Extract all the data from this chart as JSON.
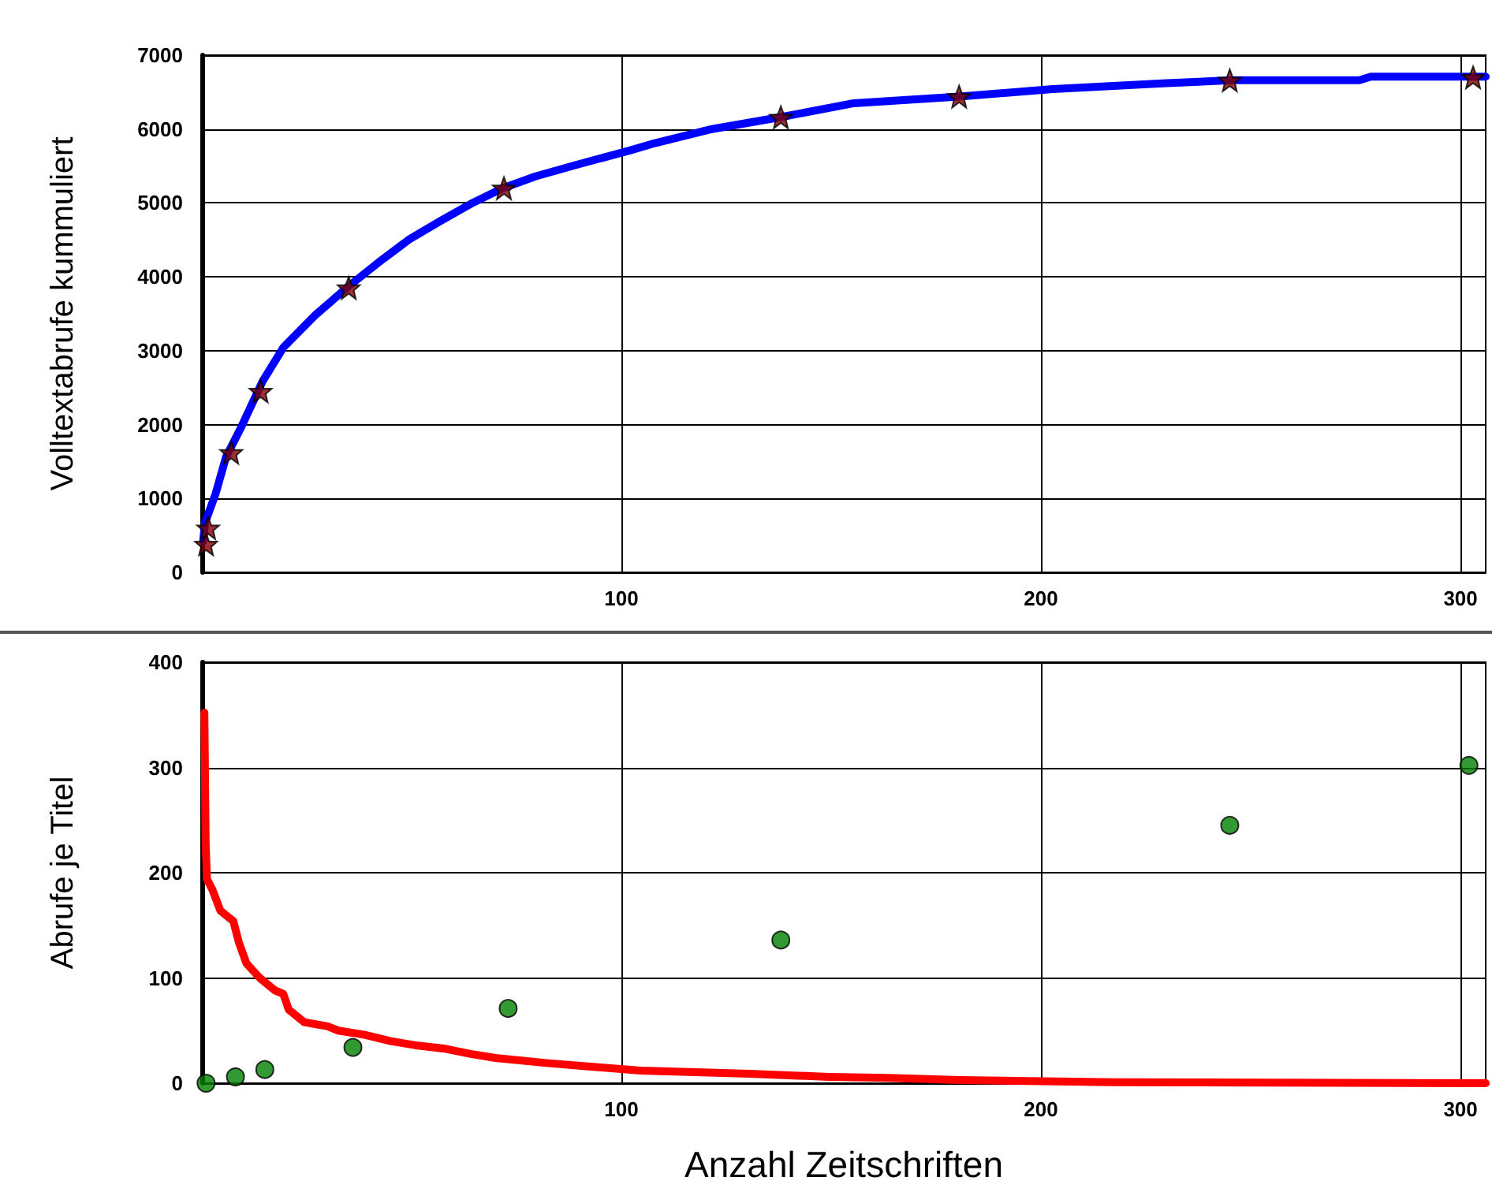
{
  "chart_data": [
    {
      "type": "line",
      "ylabel": "Volltextabrufe kummuliert",
      "xlim": [
        0,
        306
      ],
      "xticks": [
        100,
        200,
        300
      ],
      "ylim": [
        0,
        7000
      ],
      "yticks": [
        0,
        1000,
        2000,
        3000,
        4000,
        5000,
        6000,
        7000
      ],
      "grid": true,
      "series": [
        {
          "color": "#0000ff",
          "marker": "none",
          "x": [
            0.3,
            0.75,
            3.25,
            5.75,
            9.5,
            14.5,
            19.5,
            27,
            34.5,
            42,
            49.5,
            57,
            64.5,
            71.7,
            79.5,
            89.5,
            102,
            108,
            121.6,
            137.8,
            155.4,
            180.5,
            202.8,
            229.9,
            245.4,
            275.9,
            278.6,
            306
          ],
          "values": [
            420,
            670,
            1060,
            1560,
            1980,
            2590,
            3050,
            3480,
            3850,
            4190,
            4510,
            4760,
            5000,
            5200,
            5360,
            5520,
            5710,
            5810,
            6000,
            6160,
            6350,
            6440,
            6540,
            6620,
            6660,
            6660,
            6710,
            6710
          ]
        },
        {
          "type": "scatter",
          "color": "#800000",
          "marker": "star",
          "x": [
            1,
            1.5,
            7,
            14,
            35,
            72,
            138,
            180.5,
            245,
            303
          ],
          "values": [
            380,
            600,
            1620,
            2450,
            3850,
            5200,
            6160,
            6440,
            6660,
            6700
          ]
        }
      ]
    },
    {
      "type": "line",
      "xlabel": "Anzahl Zeitschriften",
      "ylabel": "Abrufe je Titel",
      "xlim": [
        0,
        306
      ],
      "xticks": [
        100,
        200,
        300
      ],
      "ylim": [
        0,
        400
      ],
      "yticks": [
        0,
        100,
        200,
        300,
        400
      ],
      "grid": true,
      "series": [
        {
          "color": "#ff0000",
          "marker": "none",
          "x": [
            0.6,
            0.9,
            1.2,
            2.5,
            4.4,
            7.5,
            8.8,
            10.6,
            13.8,
            17.5,
            19.4,
            20.7,
            24.4,
            30,
            32.5,
            38.8,
            45,
            51,
            57.6,
            63.8,
            70,
            82.6,
            95,
            104.6,
            130.5,
            149.5,
            163.7,
            180.6,
            217,
            306
          ],
          "values": [
            352,
            229,
            194,
            184,
            164,
            154,
            134,
            114,
            100,
            88,
            85,
            70,
            58,
            54,
            50,
            46,
            40,
            36,
            33,
            28,
            24,
            19,
            15,
            12,
            9,
            6,
            5,
            3,
            1,
            0
          ]
        },
        {
          "type": "scatter",
          "color": "#008000",
          "marker": "circle",
          "x": [
            1,
            8,
            15,
            36,
            73,
            138,
            245,
            302
          ],
          "values": [
            0,
            6,
            13,
            34,
            71,
            136,
            245,
            302
          ]
        }
      ]
    }
  ]
}
